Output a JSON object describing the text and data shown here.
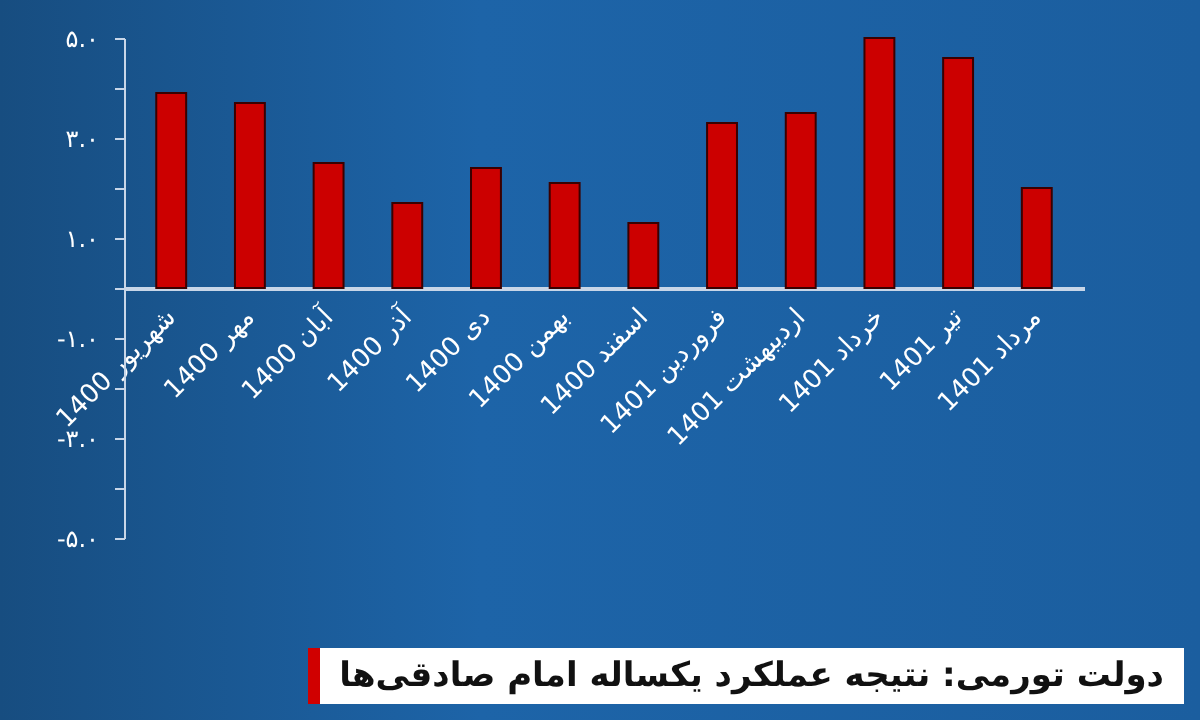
{
  "chart_data": {
    "type": "bar",
    "title": "دولت تورمی: نتیجه عملکرد یکساله امام صادقی‌ها",
    "categories": [
      "شهریور 1400",
      "مهر 1400",
      "آبان 1400",
      "آذر 1400",
      "دی 1400",
      "بهمن 1400",
      "اسفند 1400",
      "فروردین 1401",
      "اردیبهشت 1401",
      "خرداد 1401",
      "تیر 1401",
      "مرداد 1401"
    ],
    "values": [
      3.9,
      3.7,
      2.5,
      1.7,
      2.4,
      2.1,
      1.3,
      3.3,
      3.5,
      5.0,
      4.6,
      2.0
    ],
    "color": "#cc0000",
    "ylim": [
      -5,
      5
    ],
    "yticks": [
      {
        "value": -5,
        "label": "-۵.۰"
      },
      {
        "value": -4,
        "label": null
      },
      {
        "value": -3,
        "label": "-۳.۰"
      },
      {
        "value": -2,
        "label": null
      },
      {
        "value": -1,
        "label": "-۱.۰"
      },
      {
        "value": 0,
        "label": null
      },
      {
        "value": 1,
        "label": "۱.۰"
      },
      {
        "value": 2,
        "label": null
      },
      {
        "value": 3,
        "label": "۳.۰"
      },
      {
        "value": 4,
        "label": null
      },
      {
        "value": 5,
        "label": "۵.۰"
      }
    ],
    "grid": false
  }
}
